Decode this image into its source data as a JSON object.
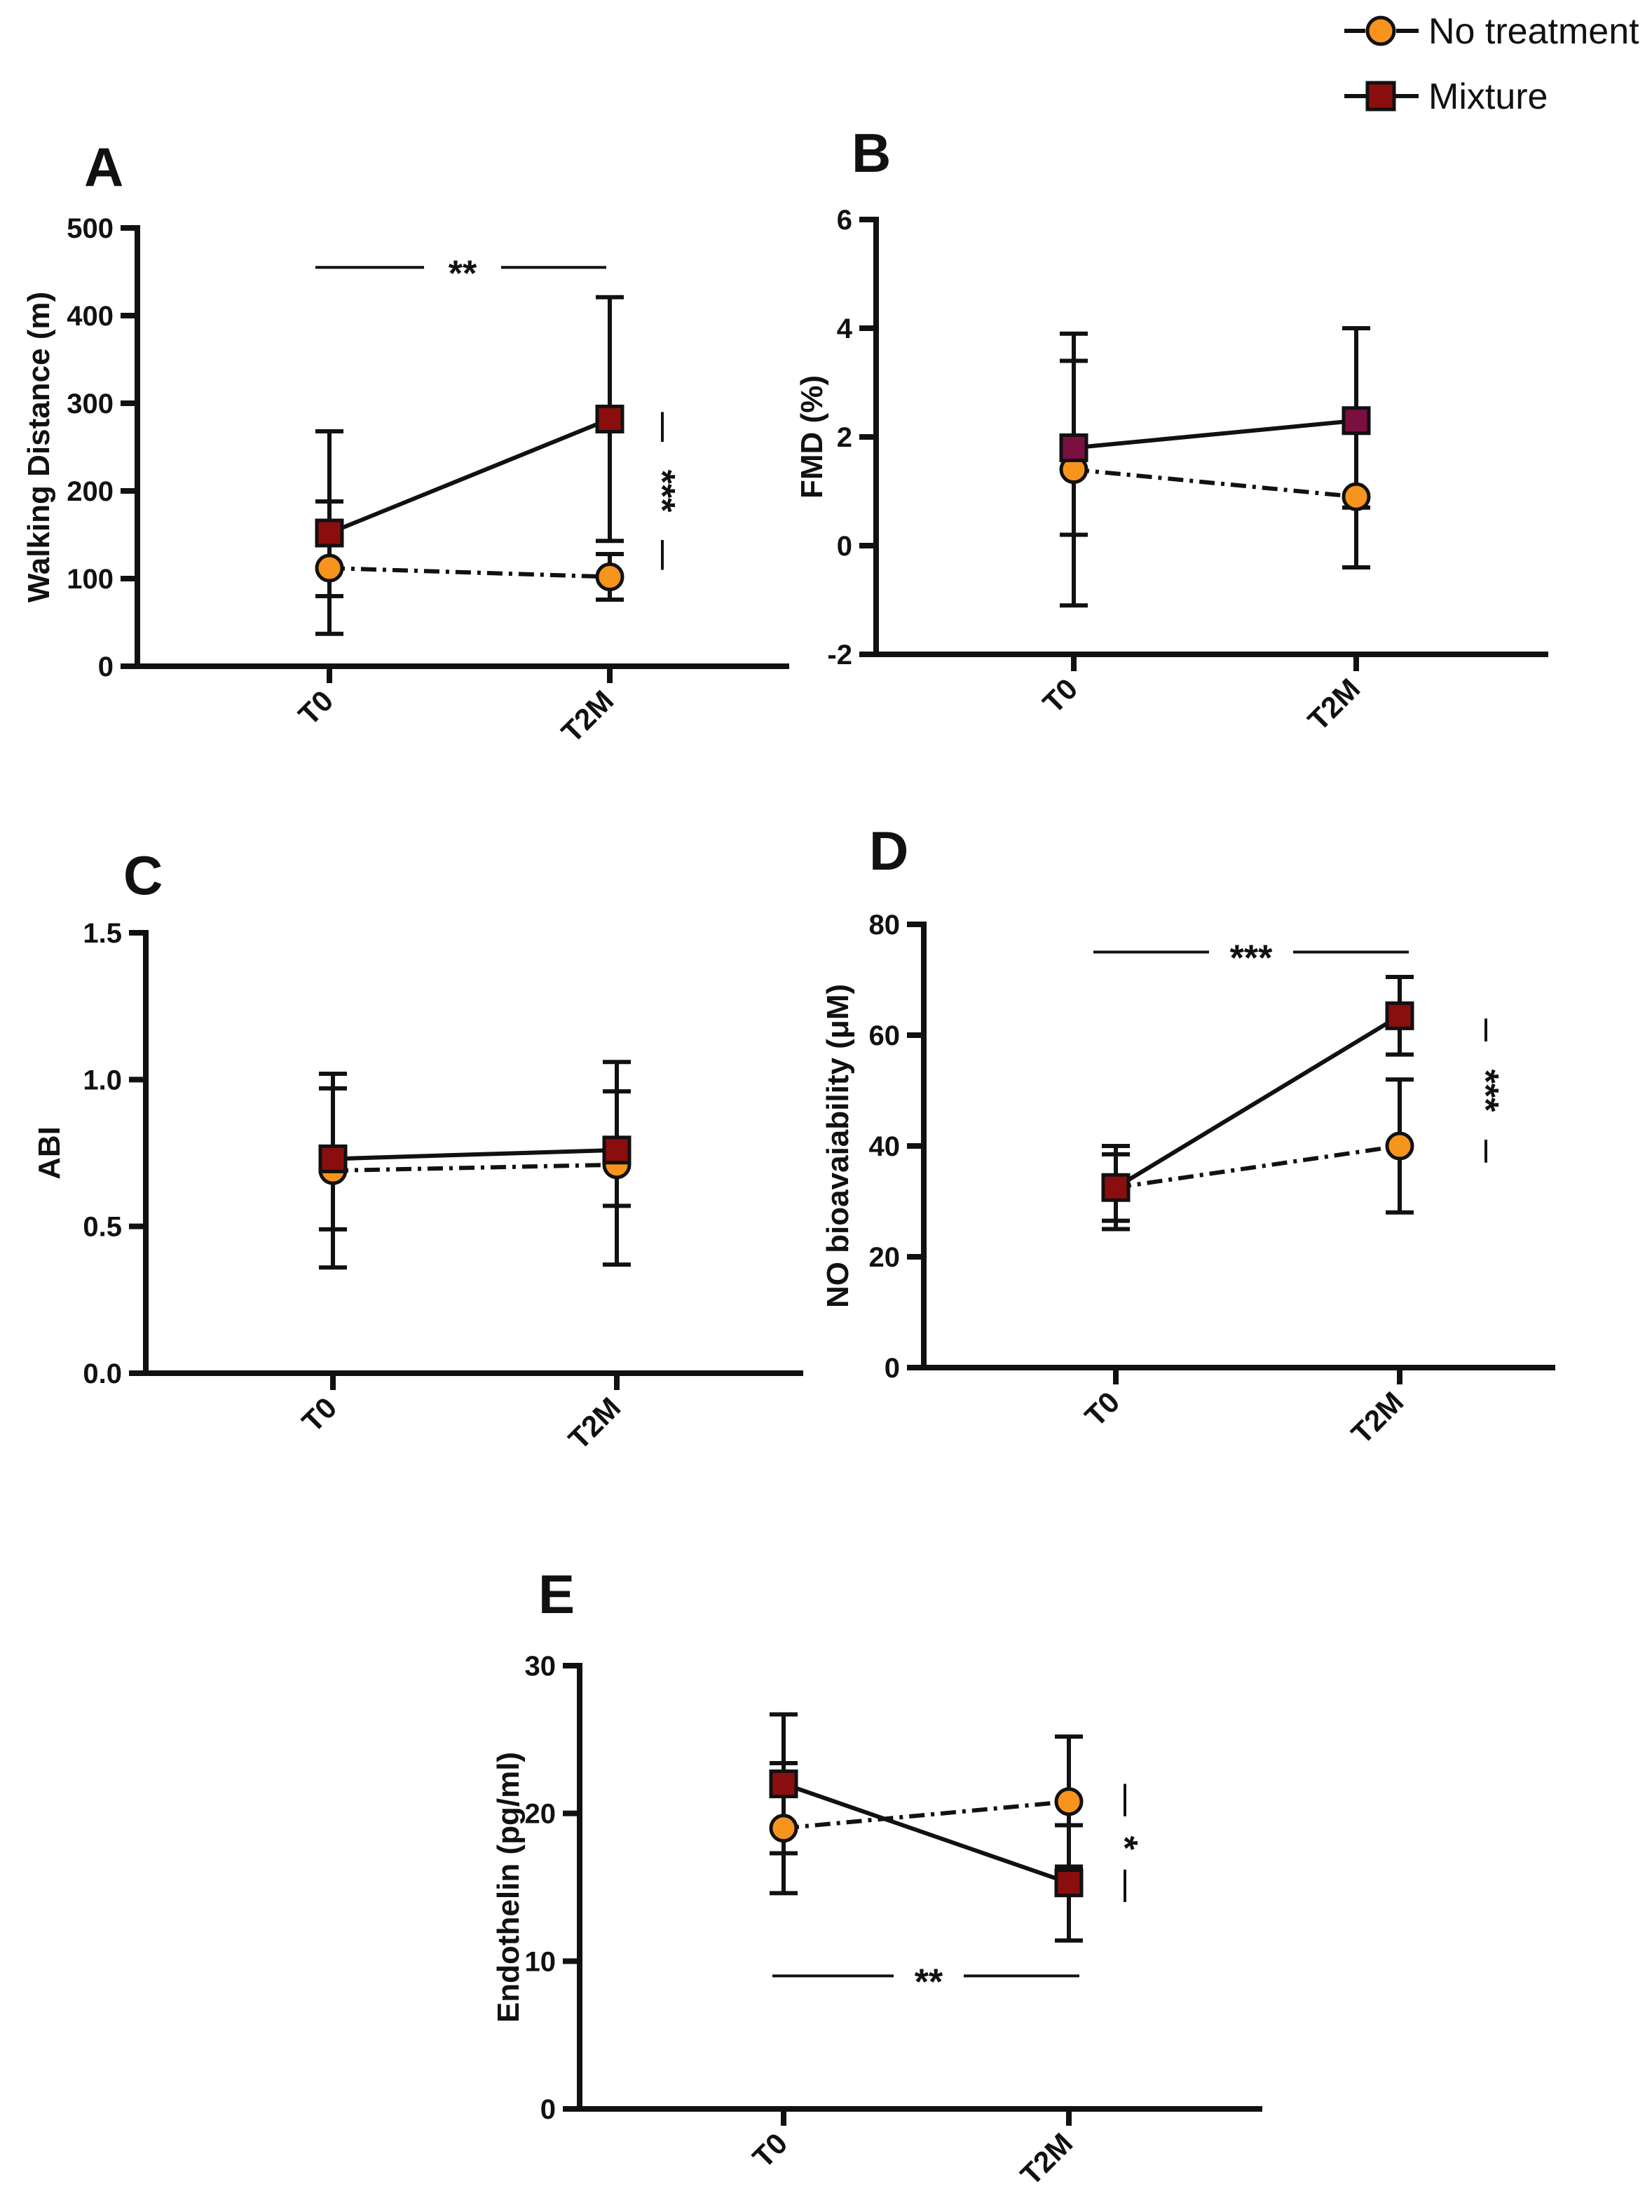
{
  "legend": {
    "placement": "top-right",
    "entries": [
      {
        "name": "No treatment",
        "marker": "circle",
        "color": "#F7941D",
        "line": "dash-dot"
      },
      {
        "name": "Mixture",
        "marker": "square",
        "color": "#8B0E0E",
        "line": "solid"
      }
    ]
  },
  "colors": {
    "no_treatment": "#F7941D",
    "mixture": "#8B0E0E",
    "mixture_alt": "#7A1040",
    "axis": "#111111"
  },
  "chart_data": [
    {
      "id": "A",
      "type": "line",
      "letter": "A",
      "ylabel": "Walking Distance (m)",
      "xlabel": "",
      "ylim": [
        0,
        500
      ],
      "yticks": [
        0,
        100,
        200,
        300,
        400,
        500
      ],
      "categories": [
        "T0",
        "T2M"
      ],
      "series": [
        {
          "name": "No treatment",
          "values": [
            112,
            102
          ],
          "err_low": [
            37,
            76
          ],
          "err_high": [
            188,
            128
          ]
        },
        {
          "name": "Mixture",
          "values": [
            152,
            282
          ],
          "err_low": [
            80,
            143
          ],
          "err_high": [
            268,
            421
          ]
        }
      ],
      "annotations": [
        {
          "label": "**",
          "kind": "horizontal",
          "y": 455
        },
        {
          "label": "***",
          "kind": "vertical",
          "y_from": 110,
          "y_to": 290
        }
      ]
    },
    {
      "id": "B",
      "type": "line",
      "letter": "B",
      "ylabel": "FMD (%)",
      "xlabel": "",
      "ylim": [
        -2,
        6
      ],
      "yticks": [
        -2,
        0,
        2,
        4,
        6
      ],
      "categories": [
        "T0",
        "T2M"
      ],
      "series": [
        {
          "name": "No treatment",
          "values": [
            1.4,
            0.9
          ],
          "err_low": [
            -1.1,
            -0.4
          ],
          "err_high": [
            3.9,
            2.2
          ]
        },
        {
          "name": "Mixture",
          "values": [
            1.8,
            2.3
          ],
          "err_low": [
            0.2,
            0.7
          ],
          "err_high": [
            3.4,
            4.0
          ]
        }
      ],
      "annotations": []
    },
    {
      "id": "C",
      "type": "line",
      "letter": "C",
      "ylabel": "ABI",
      "xlabel": "",
      "ylim": [
        0.0,
        1.5
      ],
      "yticks": [
        "0.0",
        "0.5",
        "1.0",
        "1.5"
      ],
      "categories": [
        "T0",
        "T2M"
      ],
      "series": [
        {
          "name": "No treatment",
          "values": [
            0.69,
            0.71
          ],
          "err_low": [
            0.36,
            0.37
          ],
          "err_high": [
            1.02,
            1.06
          ]
        },
        {
          "name": "Mixture",
          "values": [
            0.73,
            0.76
          ],
          "err_low": [
            0.49,
            0.57
          ],
          "err_high": [
            0.97,
            0.96
          ]
        }
      ],
      "annotations": []
    },
    {
      "id": "D",
      "type": "line",
      "letter": "D",
      "ylabel": "NO bioavaiability  (μM)",
      "xlabel": "",
      "ylim": [
        0,
        80
      ],
      "yticks": [
        0,
        20,
        40,
        60,
        80
      ],
      "categories": [
        "T0",
        "T2M"
      ],
      "series": [
        {
          "name": "No treatment",
          "values": [
            32.5,
            40
          ],
          "err_low": [
            25,
            28
          ],
          "err_high": [
            40,
            52
          ]
        },
        {
          "name": "Mixture",
          "values": [
            32.5,
            63.5
          ],
          "err_low": [
            26.5,
            56.5
          ],
          "err_high": [
            38.5,
            70.5
          ]
        }
      ],
      "annotations": [
        {
          "label": "***",
          "kind": "horizontal",
          "y": 75
        },
        {
          "label": "***",
          "kind": "vertical",
          "y_from": 37,
          "y_to": 63
        }
      ]
    },
    {
      "id": "E",
      "type": "line",
      "letter": "E",
      "ylabel": "Endothelin (pg/ml)",
      "xlabel": "",
      "ylim": [
        0,
        30
      ],
      "yticks": [
        0,
        10,
        20,
        30
      ],
      "categories": [
        "T0",
        "T2M"
      ],
      "series": [
        {
          "name": "No treatment",
          "values": [
            19,
            20.8
          ],
          "err_low": [
            14.6,
            16.4
          ],
          "err_high": [
            23.4,
            25.2
          ]
        },
        {
          "name": "Mixture",
          "values": [
            22,
            15.3
          ],
          "err_low": [
            17.3,
            11.4
          ],
          "err_high": [
            26.7,
            19.2
          ]
        }
      ],
      "annotations": [
        {
          "label": "*",
          "kind": "vertical",
          "y_from": 14,
          "y_to": 22
        },
        {
          "label": "**",
          "kind": "horizontal",
          "y": 9
        }
      ]
    }
  ]
}
